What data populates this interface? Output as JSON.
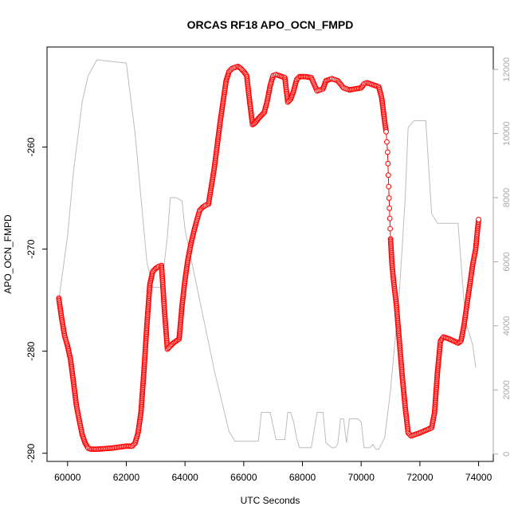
{
  "chart_data": {
    "type": "scatter",
    "title": "ORCAS RF18 APO_OCN_FMPD",
    "xlabel": "UTC Seconds",
    "ylabel": "APO_OCN_FMPD",
    "xlim": [
      59300,
      74500
    ],
    "ylim": [
      -290.8,
      -250.2
    ],
    "y2lim": [
      -230,
      12700
    ],
    "x_ticks": [
      "60000",
      "62000",
      "64000",
      "66000",
      "68000",
      "70000",
      "72000",
      "74000"
    ],
    "y_ticks": [
      "-290",
      "-280",
      "-270",
      "-260"
    ],
    "y2_ticks": [
      "0",
      "2000",
      "4000",
      "6000",
      "8000",
      "10000",
      "12000"
    ],
    "grid": false,
    "colors": {
      "series": "#ff0000",
      "altitude": "#bdbdbd",
      "axis": "#000000",
      "right_axis": "#a8a8a8"
    },
    "series": [
      {
        "style": "red-open-circles",
        "x": [
          59700,
          59800,
          59900,
          60000,
          60100,
          60200,
          60300,
          60400,
          60500,
          60600,
          60700,
          60800,
          61000,
          61500,
          62000,
          62200,
          62300,
          62400,
          62500,
          62600,
          62700,
          62800,
          62900,
          63000,
          63100,
          63200,
          63300,
          63400,
          63500,
          63600,
          63700,
          63800,
          63900,
          64000,
          64100,
          64200,
          64300,
          64400,
          64500,
          64600,
          64700,
          64800,
          65000,
          65200,
          65300,
          65400,
          65500,
          65600,
          65700,
          65800,
          65900,
          66000,
          66100,
          66200,
          66300,
          66400,
          66500,
          66700,
          66800,
          66900,
          67000,
          67100,
          67200,
          67400,
          67500,
          67600,
          67700,
          67800,
          67900,
          68100,
          68300,
          68500,
          68600,
          68700,
          68800,
          69000,
          69100,
          69200,
          69400,
          69500,
          69600,
          69800,
          70000,
          70100,
          70200,
          70400,
          70600,
          70700,
          70800,
          70850,
          70900,
          70950,
          71000,
          71050,
          71100,
          71200,
          71300,
          71400,
          71500,
          71600,
          71700,
          72000,
          72400,
          72500,
          72600,
          72700,
          72800,
          73000,
          73300,
          73400,
          73500,
          73600,
          73700,
          73800,
          73900,
          73950,
          74000
        ],
        "y": [
          -274.8,
          -276.8,
          -278.5,
          -279.5,
          -280.8,
          -283.0,
          -285.3,
          -286.8,
          -288.2,
          -289.0,
          -289.5,
          -289.6,
          -289.6,
          -289.5,
          -289.3,
          -289.3,
          -289.0,
          -288.0,
          -286.0,
          -282.0,
          -277.5,
          -273.5,
          -272.2,
          -271.9,
          -271.7,
          -271.6,
          -276.0,
          -279.8,
          -279.5,
          -279.2,
          -279.0,
          -278.8,
          -275.5,
          -273.0,
          -271.0,
          -269.5,
          -268.3,
          -267.2,
          -266.2,
          -265.9,
          -265.7,
          -265.6,
          -262.0,
          -257.5,
          -255.5,
          -253.5,
          -252.6,
          -252.3,
          -252.2,
          -252.1,
          -252.3,
          -252.6,
          -253.0,
          -255.5,
          -257.8,
          -257.6,
          -257.2,
          -256.6,
          -255.5,
          -254.0,
          -253.0,
          -252.9,
          -253.0,
          -253.2,
          -255.6,
          -255.3,
          -254.5,
          -253.4,
          -253.1,
          -253.1,
          -253.2,
          -254.5,
          -254.4,
          -254.3,
          -253.5,
          -253.3,
          -253.4,
          -253.5,
          -254.2,
          -254.3,
          -254.4,
          -254.3,
          -254.2,
          -253.8,
          -253.7,
          -253.9,
          -254.1,
          -255.2,
          -257.5,
          -258.5,
          -260.5,
          -265.0,
          -269.0,
          -271.5,
          -273.0,
          -275.5,
          -279.0,
          -282.5,
          -285.5,
          -288.0,
          -288.3,
          -288.0,
          -287.5,
          -286.0,
          -282.0,
          -279.0,
          -278.6,
          -278.8,
          -279.2,
          -279.0,
          -277.5,
          -275.5,
          -273.5,
          -271.5,
          -270.0,
          -268.5,
          -267.1
        ]
      },
      {
        "style": "grey-line-right-axis",
        "x": [
          59700,
          60000,
          60200,
          60500,
          60700,
          61000,
          61500,
          62000,
          62300,
          62500,
          62700,
          62900,
          63200,
          63400,
          63500,
          63700,
          63900,
          64000,
          64500,
          65000,
          65500,
          65700,
          66000,
          66300,
          66500,
          66600,
          66800,
          66900,
          67100,
          67300,
          67400,
          67500,
          67600,
          67700,
          67800,
          67900,
          68100,
          68300,
          68500,
          68600,
          68700,
          68800,
          69000,
          69100,
          69200,
          69300,
          69400,
          69500,
          69600,
          69700,
          69900,
          70000,
          70100,
          70300,
          70400,
          70500,
          70600,
          70800,
          71000,
          71300,
          71500,
          71600,
          71800,
          72000,
          72200,
          72400,
          72600,
          72800,
          73000,
          73300,
          73500,
          73600,
          73800,
          73900
        ],
        "y": [
          4800,
          6800,
          8800,
          11000,
          11800,
          12300,
          12250,
          12200,
          10000,
          8000,
          6000,
          5200,
          5200,
          6800,
          8000,
          8000,
          7900,
          7000,
          4800,
          2600,
          700,
          400,
          400,
          400,
          400,
          1300,
          1300,
          1300,
          450,
          450,
          450,
          1300,
          1300,
          1000,
          500,
          200,
          200,
          200,
          1300,
          1300,
          1300,
          350,
          200,
          200,
          300,
          1100,
          1100,
          350,
          1100,
          1100,
          1100,
          1000,
          200,
          200,
          300,
          150,
          150,
          500,
          2000,
          5000,
          8000,
          10200,
          10400,
          10400,
          10400,
          7500,
          7200,
          7200,
          7200,
          7200,
          4800,
          4000,
          3400,
          2700
        ]
      }
    ]
  }
}
